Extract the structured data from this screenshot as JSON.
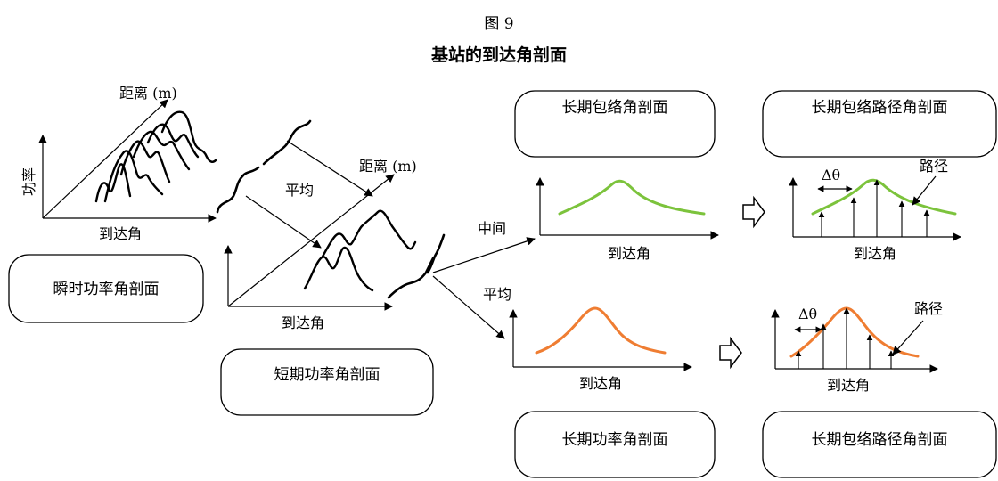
{
  "figure": {
    "number": "图 9",
    "title": "基站的到达角剖面"
  },
  "labels": {
    "instant_profile": "瞬时功率角剖面",
    "short_term_profile": "短期功率角剖面",
    "long_envelope_profile": "长期包络角剖面",
    "long_envelope_path_profile_top": "长期包络路径角剖面",
    "long_power_profile": "长期功率角剖面",
    "long_envelope_path_profile_bottom": "长期包络路径角剖面",
    "distance_1": "距离 (m)",
    "distance_2": "距离 (m)",
    "power_axis": "功率",
    "aoa_instant": "到达角",
    "aoa_short": "到达角",
    "aoa_mid": "到达角",
    "aoa_avg": "到达角",
    "aoa_path_top": "到达角",
    "aoa_path_bottom": "到达角",
    "average_1": "平均",
    "average_2": "平均",
    "middle": "中间",
    "path_1": "路径",
    "path_2": "路径",
    "delta_theta_1": "Δθ",
    "delta_theta_2": "Δθ"
  },
  "colors": {
    "green_curve": "#7cc33c",
    "orange_curve": "#ef7d32",
    "ink": "#000000"
  },
  "arrow_icons": [
    "hollow-right-arrow",
    "hollow-right-arrow"
  ]
}
